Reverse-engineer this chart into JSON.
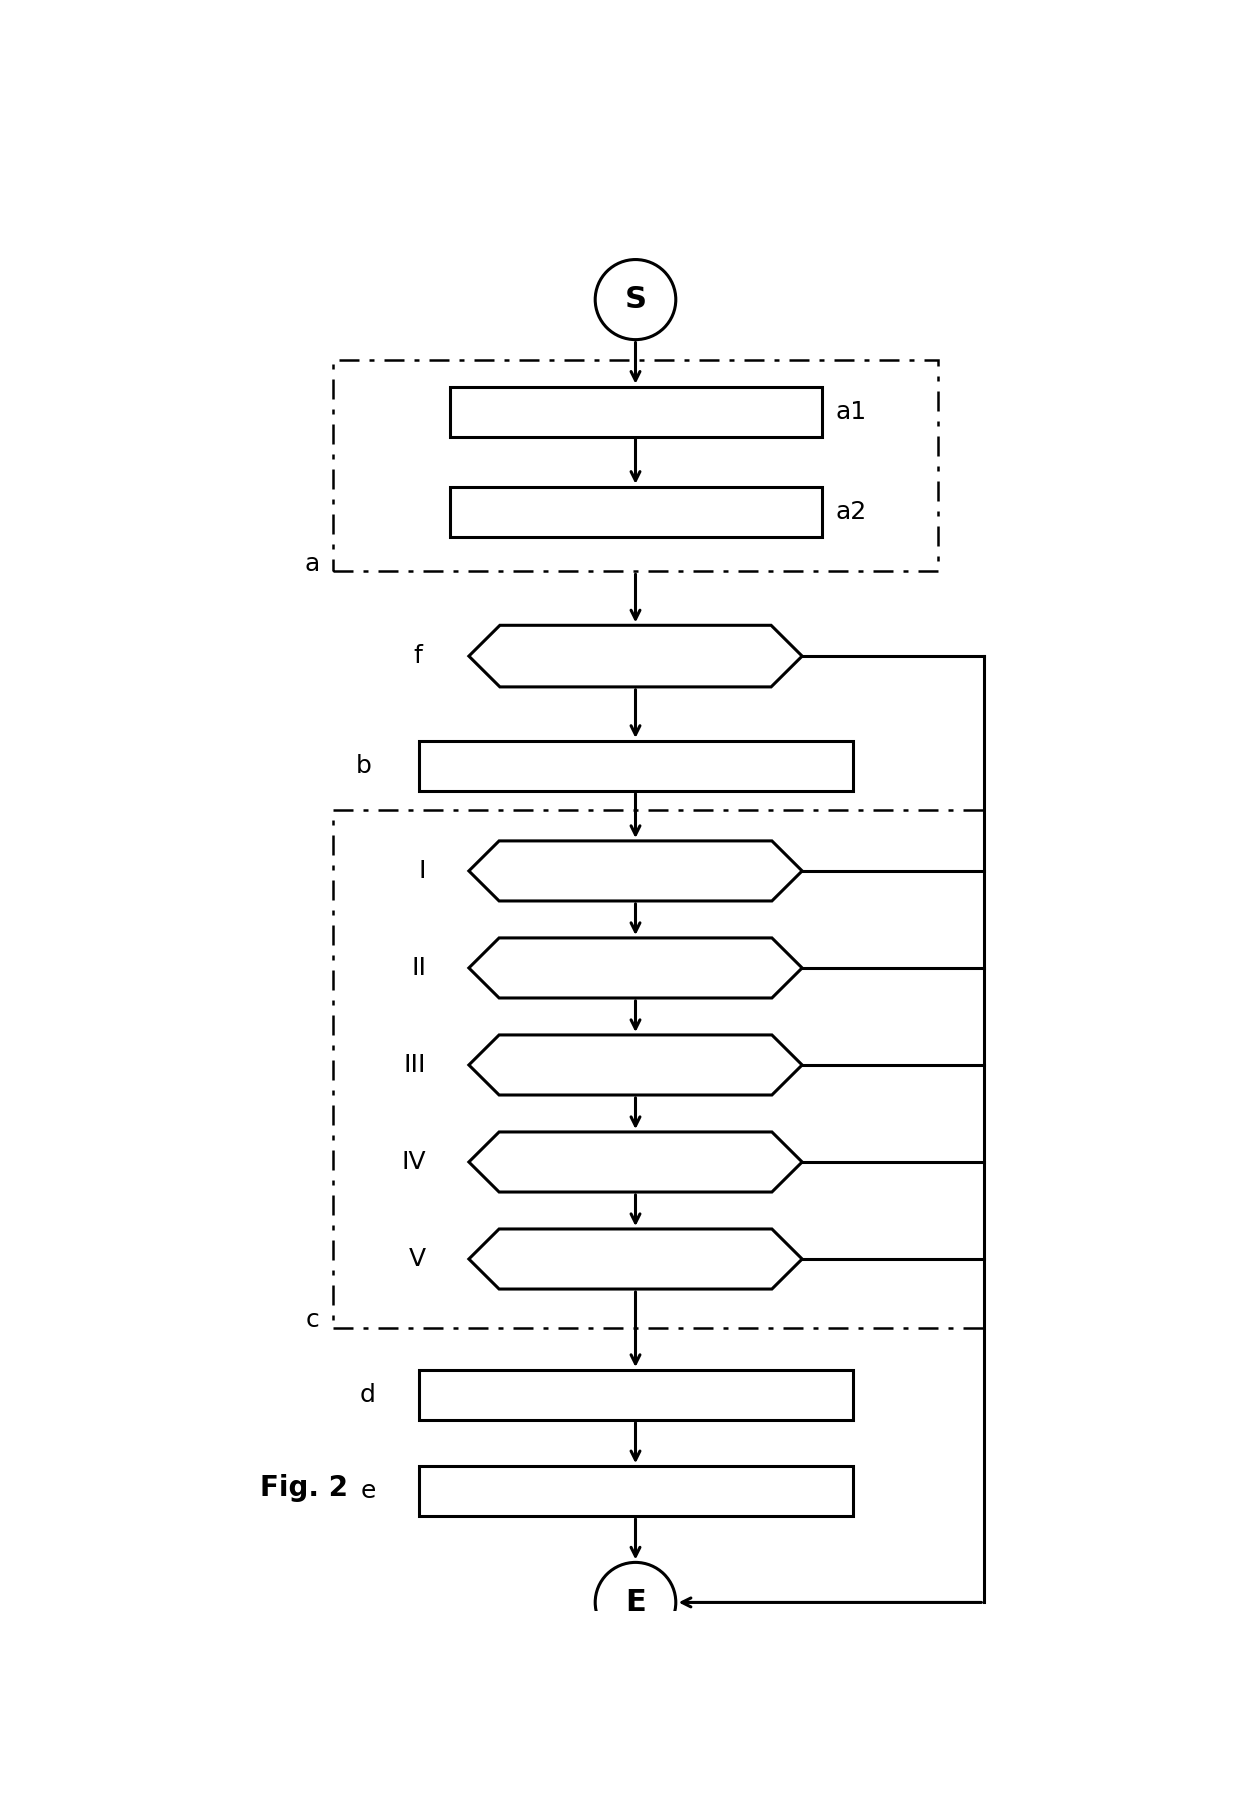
{
  "bg_color": "#ffffff",
  "line_color": "#000000",
  "fig_label": "Fig. 2",
  "start_label": "S",
  "end_label": "E",
  "boxes_a": [
    "a1",
    "a2"
  ],
  "diamond_f_label": "f",
  "box_b_label": "b",
  "diamonds_c_labels": [
    "I",
    "II",
    "III",
    "IV",
    "V"
  ],
  "box_d_label": "d",
  "box_e_label": "e",
  "group_a_label": "a",
  "group_c_label": "c",
  "lw_main": 2.2,
  "lw_border": 1.8,
  "fontsize_label": 18,
  "fontsize_circle": 22,
  "fontsize_fig": 20
}
